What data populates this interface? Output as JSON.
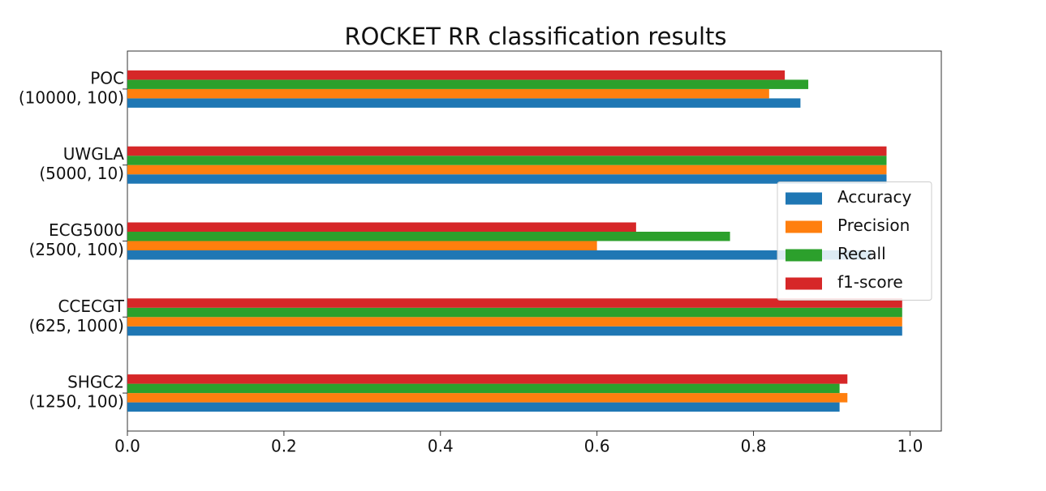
{
  "chart_data": {
    "type": "barh",
    "title": "ROCKET RR classification results",
    "categories": [
      [
        "POC",
        "(10000, 100)"
      ],
      [
        "UWGLA",
        "(5000, 10)"
      ],
      [
        "ECG5000",
        "(2500, 100)"
      ],
      [
        "CCECGT",
        "(625, 1000)"
      ],
      [
        "SHGC2",
        "(1250, 100)"
      ]
    ],
    "series": [
      {
        "name": "Accuracy",
        "color": "#1f77b4",
        "values": [
          0.86,
          0.97,
          0.95,
          0.99,
          0.91
        ]
      },
      {
        "name": "Precision",
        "color": "#ff7f0e",
        "values": [
          0.82,
          0.97,
          0.6,
          0.99,
          0.92
        ]
      },
      {
        "name": "Recall",
        "color": "#2ca02c",
        "values": [
          0.87,
          0.97,
          0.77,
          0.99,
          0.91
        ]
      },
      {
        "name": "f1-score",
        "color": "#d62728",
        "values": [
          0.84,
          0.97,
          0.65,
          0.99,
          0.92
        ]
      }
    ],
    "xlim": [
      0,
      1.04
    ],
    "xticks": [
      {
        "value": 0,
        "label": "0.0"
      },
      0.2,
      0.4,
      0.6,
      0.8,
      {
        "value": 1,
        "label": "1.0"
      }
    ],
    "grid": false,
    "legend": "center right"
  }
}
